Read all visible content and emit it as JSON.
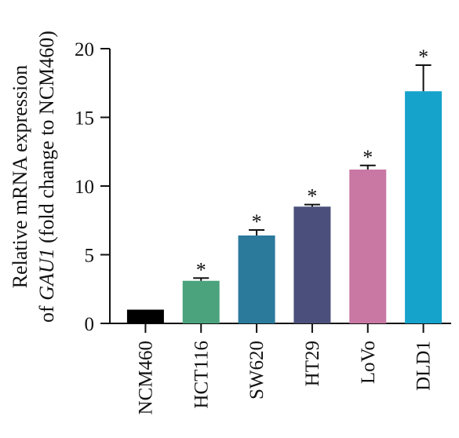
{
  "chart_data": {
    "type": "bar",
    "categories": [
      "NCM460",
      "HCT116",
      "SW620",
      "HT29",
      "LoVo",
      "DLD1"
    ],
    "values": [
      1.0,
      3.1,
      6.4,
      8.5,
      11.2,
      16.9
    ],
    "errors": [
      0.0,
      0.2,
      0.4,
      0.15,
      0.3,
      1.9
    ],
    "significance": [
      "",
      "*",
      "*",
      "*",
      "*",
      "*"
    ],
    "colors": [
      "#000000",
      "#4aa37c",
      "#2b7a9c",
      "#4b4f7c",
      "#c878a3",
      "#16a3cb"
    ],
    "ylabel_line1": "Relative mRNA expression",
    "ylabel_line2_prefix": "of ",
    "ylabel_line2_gene": "GAU1",
    "ylabel_line2_suffix": " (fold change to NCM460)",
    "ylim": [
      0,
      20
    ],
    "yticks": [
      0,
      5,
      10,
      15,
      20
    ],
    "grid": false,
    "legend": "none"
  }
}
